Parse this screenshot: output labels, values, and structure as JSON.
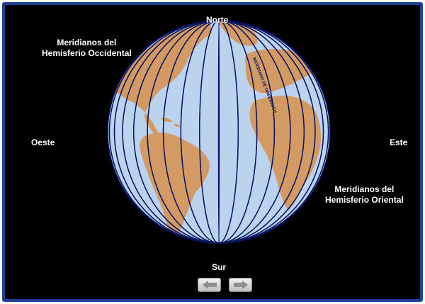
{
  "labels": {
    "north": "Norte",
    "south": "Sur",
    "west": "Oeste",
    "east": "Este",
    "western_meridians": [
      "Meridianos del",
      "Hemisferio Occidental"
    ],
    "eastern_meridians": [
      "Meridianos del",
      "Hemisferio Oriental"
    ],
    "greenwich": "MERIDIANO DE GREENWICH"
  },
  "navigation": {
    "prev_icon": "arrow-left-icon",
    "next_icon": "arrow-right-icon"
  },
  "colors": {
    "ocean": "#bcd3ee",
    "land": "#d49a63",
    "meridian": "#0a1560",
    "background": "#000000",
    "border": "#1f3f9a"
  },
  "meridian_count": 18
}
